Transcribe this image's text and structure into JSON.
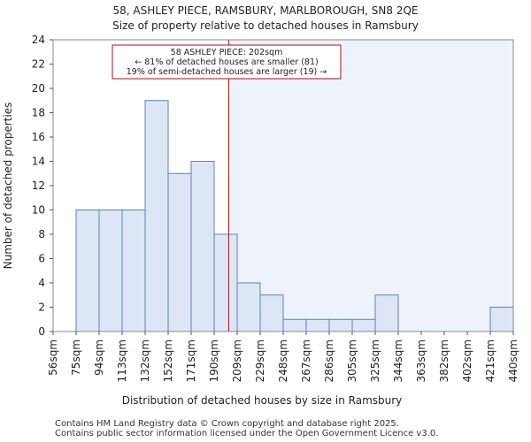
{
  "title_line1": "58, ASHLEY PIECE, RAMSBURY, MARLBOROUGH, SN8 2QE",
  "title_line2": "Size of property relative to detached houses in Ramsbury",
  "footer_line1": "Contains HM Land Registry data © Crown copyright and database right 2025.",
  "footer_line2": "Contains public sector information licensed under the Open Government Licence v3.0.",
  "chart_data": {
    "type": "bar",
    "xlabel": "Distribution of detached houses by size in Ramsbury",
    "ylabel": "Number of detached properties",
    "ylim": [
      0,
      24
    ],
    "yticks": [
      0,
      2,
      4,
      6,
      8,
      10,
      12,
      14,
      16,
      18,
      20,
      22,
      24
    ],
    "bin_edges": [
      56,
      75,
      94,
      113,
      132,
      152,
      171,
      190,
      209,
      229,
      248,
      267,
      286,
      305,
      325,
      344,
      363,
      382,
      402,
      421,
      440
    ],
    "tick_labels": [
      "56sqm",
      "75sqm",
      "94sqm",
      "113sqm",
      "132sqm",
      "152sqm",
      "171sqm",
      "190sqm",
      "209sqm",
      "229sqm",
      "248sqm",
      "267sqm",
      "286sqm",
      "305sqm",
      "325sqm",
      "344sqm",
      "363sqm",
      "382sqm",
      "402sqm",
      "421sqm",
      "440sqm"
    ],
    "values": [
      0,
      10,
      10,
      10,
      19,
      13,
      14,
      8,
      4,
      3,
      1,
      1,
      1,
      1,
      3,
      0,
      0,
      0,
      0,
      2
    ],
    "marker_value": 202,
    "annotation": {
      "line1": "58 ASHLEY PIECE: 202sqm",
      "line2": "← 81% of detached houses are smaller (81)",
      "line3": "19% of semi-detached houses are larger (19) →"
    },
    "colors": {
      "bar_fill": "#dce6f5",
      "bar_stroke": "#5a82c0",
      "marker": "#aa1111",
      "shade": "#eef2fa",
      "annotation_border": "#aa1111"
    },
    "grid": false
  }
}
